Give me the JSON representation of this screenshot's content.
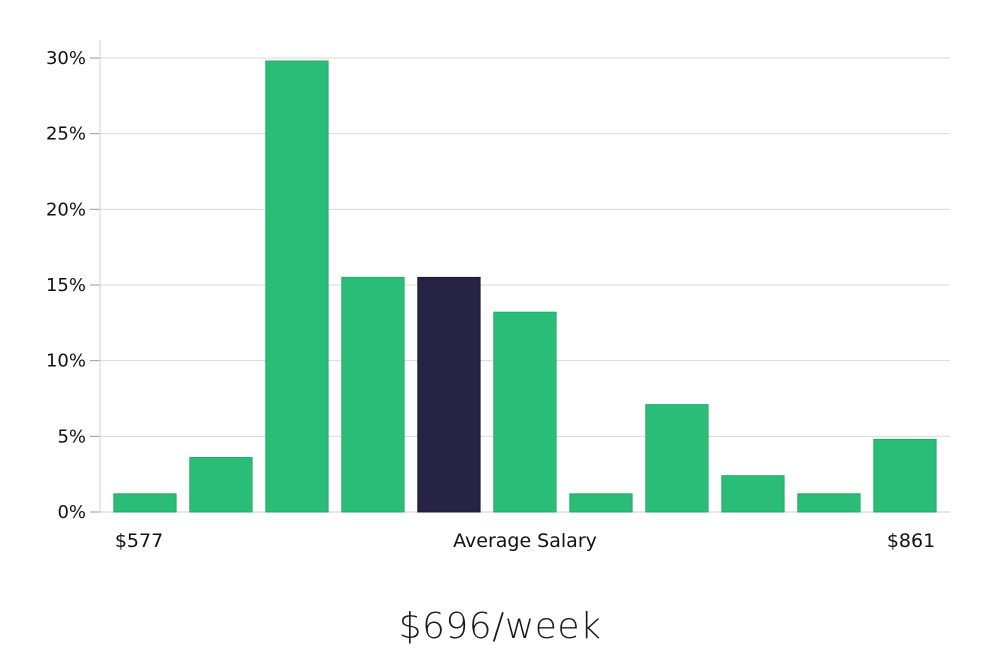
{
  "chart_data": {
    "type": "bar",
    "yticks": [
      "0%",
      "5%",
      "10%",
      "15%",
      "20%",
      "25%",
      "30%"
    ],
    "ylim": [
      0,
      30
    ],
    "values": [
      1.2,
      3.6,
      29.8,
      15.5,
      15.5,
      13.2,
      1.2,
      7.1,
      2.4,
      1.2,
      4.8
    ],
    "highlight_index": 4,
    "colors": {
      "bar": "#2abd77",
      "highlight": "#262345",
      "grid": "#d9d9d9",
      "axis": "#cfcfcf"
    },
    "x_min_label": "$577",
    "x_center_label": "Average Salary",
    "x_max_label": "$861",
    "grid": true
  },
  "summary": "$696/week"
}
